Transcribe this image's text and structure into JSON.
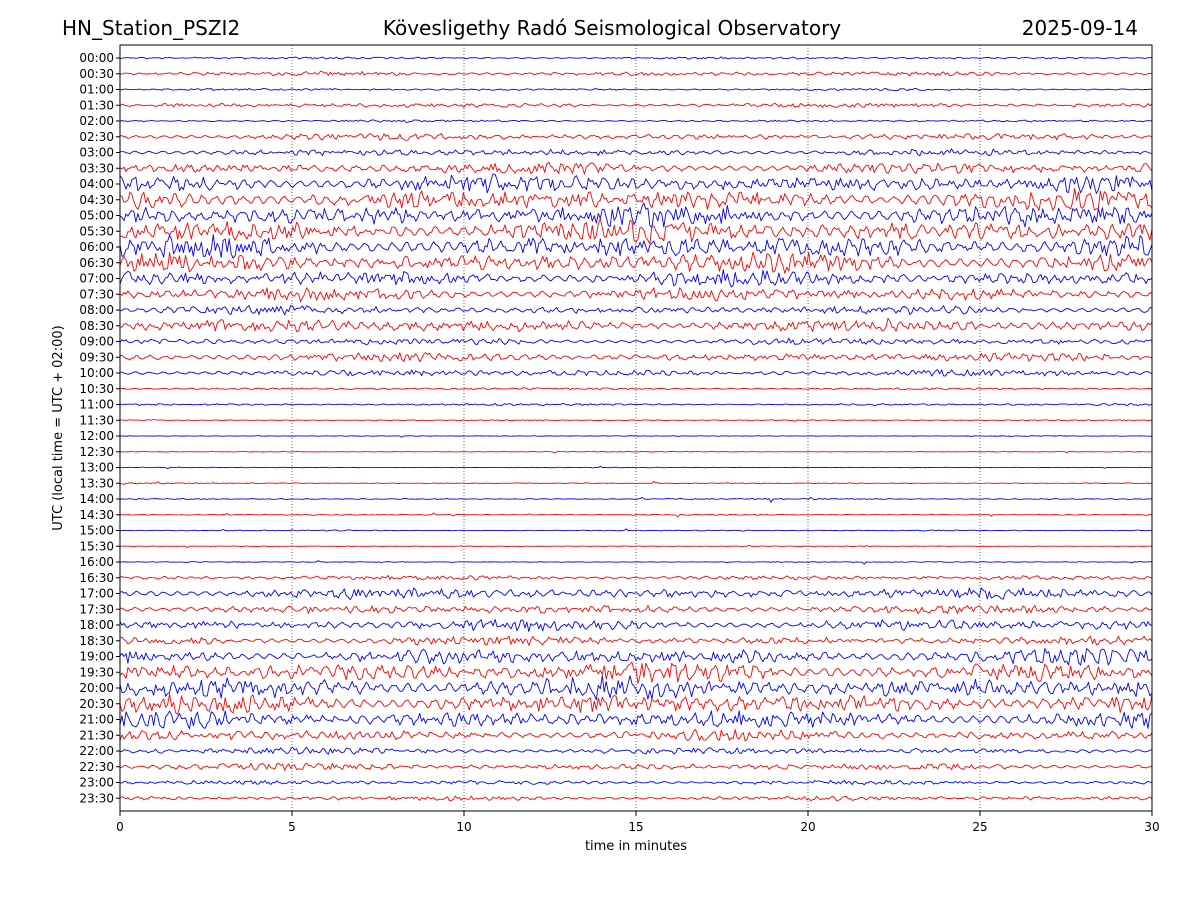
{
  "header": {
    "station": "HN_Station_PSZI2",
    "observatory": "Kövesligethy Radó Seismological Observatory",
    "date": "2025-09-14"
  },
  "chart_data": {
    "type": "line",
    "title": "Kövesligethy Radó Seismological Observatory",
    "xlabel": "time in minutes",
    "ylabel": "UTC (local time = UTC + 02:00)",
    "xlim": [
      0,
      30
    ],
    "x_ticks": [
      "0",
      "5",
      "10",
      "15",
      "20",
      "25",
      "30"
    ],
    "grid": "vertical dotted lines at 5-minute intervals",
    "colors": {
      "odd_rows": "#0000ff",
      "even_rows": "#ff0000",
      "grid": "#000000"
    },
    "rows": [
      {
        "label": "00:00",
        "amplitude": 1
      },
      {
        "label": "00:30",
        "amplitude": 2
      },
      {
        "label": "01:00",
        "amplitude": 1
      },
      {
        "label": "01:30",
        "amplitude": 2
      },
      {
        "label": "02:00",
        "amplitude": 1
      },
      {
        "label": "02:30",
        "amplitude": 3
      },
      {
        "label": "03:00",
        "amplitude": 3
      },
      {
        "label": "03:30",
        "amplitude": 5
      },
      {
        "label": "04:00",
        "amplitude": 8
      },
      {
        "label": "04:30",
        "amplitude": 9
      },
      {
        "label": "05:00",
        "amplitude": 10
      },
      {
        "label": "05:30",
        "amplitude": 10
      },
      {
        "label": "06:00",
        "amplitude": 10
      },
      {
        "label": "06:30",
        "amplitude": 9
      },
      {
        "label": "07:00",
        "amplitude": 7
      },
      {
        "label": "07:30",
        "amplitude": 6
      },
      {
        "label": "08:00",
        "amplitude": 4
      },
      {
        "label": "08:30",
        "amplitude": 6
      },
      {
        "label": "09:00",
        "amplitude": 3
      },
      {
        "label": "09:30",
        "amplitude": 4
      },
      {
        "label": "10:00",
        "amplitude": 3
      },
      {
        "label": "10:30",
        "amplitude": 1
      },
      {
        "label": "11:00",
        "amplitude": 1
      },
      {
        "label": "11:30",
        "amplitude": 0.5
      },
      {
        "label": "12:00",
        "amplitude": 0.3
      },
      {
        "label": "12:30",
        "amplitude": 0.3
      },
      {
        "label": "13:00",
        "amplitude": 0.3
      },
      {
        "label": "13:30",
        "amplitude": 0.5
      },
      {
        "label": "14:00",
        "amplitude": 0.6
      },
      {
        "label": "14:30",
        "amplitude": 0.5
      },
      {
        "label": "15:00",
        "amplitude": 0.5
      },
      {
        "label": "15:30",
        "amplitude": 0.3
      },
      {
        "label": "16:00",
        "amplitude": 0.4
      },
      {
        "label": "16:30",
        "amplitude": 2
      },
      {
        "label": "17:00",
        "amplitude": 5
      },
      {
        "label": "17:30",
        "amplitude": 4
      },
      {
        "label": "18:00",
        "amplitude": 5
      },
      {
        "label": "18:30",
        "amplitude": 4
      },
      {
        "label": "19:00",
        "amplitude": 7
      },
      {
        "label": "19:30",
        "amplitude": 9
      },
      {
        "label": "20:00",
        "amplitude": 10
      },
      {
        "label": "20:30",
        "amplitude": 9
      },
      {
        "label": "21:00",
        "amplitude": 8
      },
      {
        "label": "21:30",
        "amplitude": 5
      },
      {
        "label": "22:00",
        "amplitude": 3
      },
      {
        "label": "22:30",
        "amplitude": 3
      },
      {
        "label": "23:00",
        "amplitude": 2
      },
      {
        "label": "23:30",
        "amplitude": 2
      }
    ]
  }
}
